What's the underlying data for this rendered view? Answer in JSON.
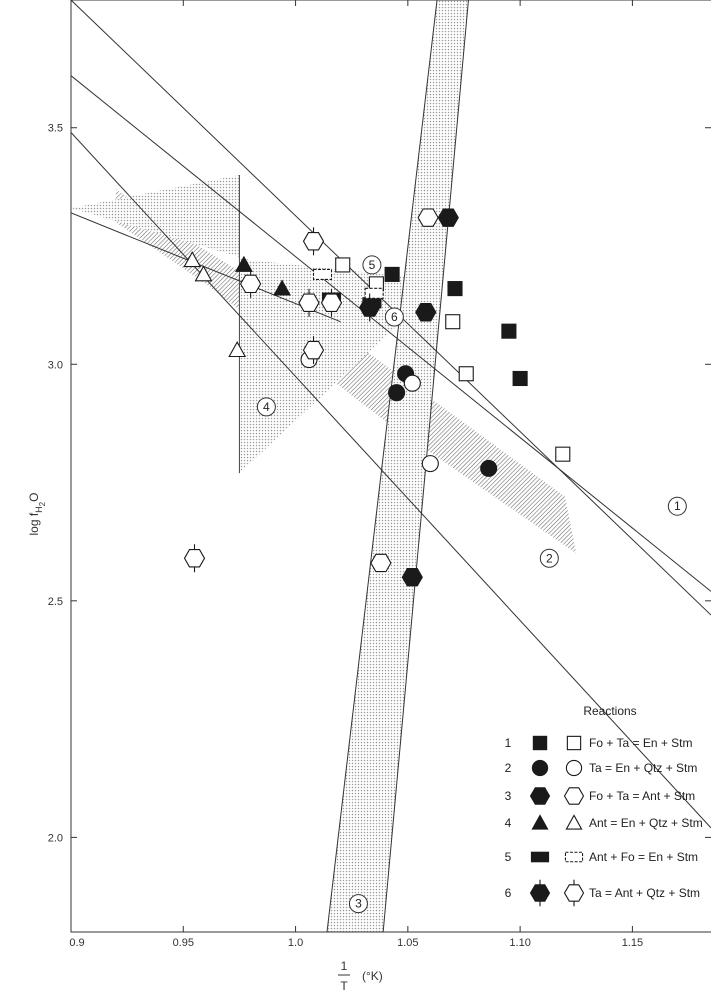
{
  "chart_data": {
    "type": "scatter",
    "xlabel_num": "1",
    "xlabel_den": "T",
    "xlabel_unit": "(°K)",
    "ylabel": "log f",
    "ylabel_sub": "H",
    "ylabel_sub2": "2",
    "ylabel_end": "O",
    "xlim": [
      0.9,
      1.185
    ],
    "ylim": [
      1.8,
      3.77
    ],
    "x_ticks": [
      0.9,
      0.95,
      1.0,
      1.05,
      1.1,
      1.15
    ],
    "x_tick_labels": [
      "0.9",
      "0.95",
      "1.0",
      "1.05",
      "1.10",
      "1.15"
    ],
    "y_ticks": [
      2.0,
      2.5,
      3.0,
      3.5
    ],
    "y_tick_labels": [
      "2.0",
      "2.5",
      "3.0",
      "3.5"
    ],
    "legend_title": "Reactions",
    "legend": [
      {
        "num": "1",
        "text": "Fo + Ta = En + Stm",
        "filled": "square",
        "open": "square"
      },
      {
        "num": "2",
        "text": "Ta = En + Qtz + Stm",
        "filled": "circle",
        "open": "circle"
      },
      {
        "num": "3",
        "text": "Fo + Ta = Ant + Stm",
        "filled": "hexagon",
        "open": "hexagon"
      },
      {
        "num": "4",
        "text": "Ant = En + Qtz + Stm",
        "filled": "triangle",
        "open": "triangle"
      },
      {
        "num": "5",
        "text": "Ant + Fo = En + Stm",
        "filled": "rect",
        "open": "rect"
      },
      {
        "num": "6",
        "text": "Ta = Ant + Qtz + Stm",
        "filled": "hexbar",
        "open": "hexbar"
      }
    ],
    "reaction_lines": [
      {
        "name": "1",
        "x": [
          0.9,
          1.185
        ],
        "y": [
          3.77,
          2.47
        ]
      },
      {
        "name": "2a",
        "x": [
          0.9,
          1.185
        ],
        "y": [
          3.61,
          2.52
        ]
      },
      {
        "name": "2b",
        "x": [
          0.9,
          1.185
        ],
        "y": [
          3.49,
          2.02
        ]
      },
      {
        "name": "3a",
        "x": [
          1.014,
          1.063
        ],
        "y": [
          1.8,
          3.77
        ]
      },
      {
        "name": "3b",
        "x": [
          1.039,
          1.077
        ],
        "y": [
          1.8,
          3.77
        ]
      },
      {
        "name": "4",
        "x": [
          0.9,
          1.02
        ],
        "y": [
          3.32,
          3.09
        ]
      }
    ],
    "shaded_regions": [
      {
        "label": "2",
        "points": [
          [
            0.92,
            3.37
          ],
          [
            0.95,
            3.27
          ],
          [
            1.025,
            3.05
          ],
          [
            1.12,
            2.72
          ],
          [
            1.125,
            2.6
          ],
          [
            1.04,
            2.88
          ],
          [
            0.96,
            3.17
          ],
          [
            0.92,
            3.3
          ]
        ]
      },
      {
        "label": "3",
        "points": [
          [
            1.014,
            1.8
          ],
          [
            1.039,
            1.8
          ],
          [
            1.077,
            3.77
          ],
          [
            1.063,
            3.77
          ]
        ]
      },
      {
        "label": "4",
        "points": [
          [
            0.9,
            3.33
          ],
          [
            0.9,
            3.33
          ],
          [
            0.975,
            3.4
          ],
          [
            0.975,
            2.77
          ],
          [
            1.045,
            3.08
          ],
          [
            1.06,
            3.18
          ],
          [
            0.98,
            3.22
          ],
          [
            0.9,
            3.33
          ]
        ]
      }
    ],
    "callouts": [
      {
        "label": "1",
        "x": 1.17,
        "y": 2.7
      },
      {
        "label": "2",
        "x": 1.113,
        "y": 2.59
      },
      {
        "label": "3",
        "x": 1.028,
        "y": 1.86
      },
      {
        "label": "4",
        "x": 0.987,
        "y": 2.91
      },
      {
        "label": "5",
        "x": 1.034,
        "y": 3.21
      },
      {
        "label": "6",
        "x": 1.044,
        "y": 3.1
      }
    ],
    "series": [
      {
        "name": "1",
        "marker": "square",
        "filled": true,
        "points": [
          [
            1.043,
            3.19
          ],
          [
            1.071,
            3.16
          ],
          [
            1.095,
            3.07
          ],
          [
            1.1,
            2.97
          ]
        ]
      },
      {
        "name": "1",
        "marker": "square",
        "filled": false,
        "points": [
          [
            1.021,
            3.21
          ],
          [
            1.036,
            3.17
          ],
          [
            1.07,
            3.09
          ],
          [
            1.076,
            2.98
          ],
          [
            1.119,
            2.81
          ]
        ]
      },
      {
        "name": "2",
        "marker": "circle",
        "filled": true,
        "points": [
          [
            1.049,
            2.98
          ],
          [
            1.045,
            2.94
          ],
          [
            1.086,
            2.78
          ]
        ]
      },
      {
        "name": "2",
        "marker": "circle",
        "filled": false,
        "points": [
          [
            1.006,
            3.01
          ],
          [
            1.06,
            2.79
          ],
          [
            1.052,
            2.96
          ]
        ]
      },
      {
        "name": "3",
        "marker": "hexagon",
        "filled": true,
        "points": [
          [
            1.068,
            3.31
          ],
          [
            1.058,
            3.11
          ],
          [
            1.052,
            2.55
          ]
        ]
      },
      {
        "name": "3",
        "marker": "hexagon",
        "filled": false,
        "points": [
          [
            1.059,
            3.31
          ],
          [
            1.038,
            2.58
          ]
        ]
      },
      {
        "name": "4",
        "marker": "triangle",
        "filled": true,
        "points": [
          [
            0.977,
            3.21
          ],
          [
            0.994,
            3.16
          ]
        ]
      },
      {
        "name": "4",
        "marker": "triangle",
        "filled": false,
        "points": [
          [
            0.954,
            3.22
          ],
          [
            0.959,
            3.19
          ],
          [
            0.974,
            3.03
          ]
        ]
      },
      {
        "name": "5",
        "marker": "rect",
        "filled": true,
        "points": [
          [
            1.016,
            3.14
          ],
          [
            1.034,
            3.13
          ]
        ]
      },
      {
        "name": "5",
        "marker": "rect",
        "filled": false,
        "points": [
          [
            1.012,
            3.19
          ],
          [
            1.035,
            3.15
          ]
        ]
      },
      {
        "name": "6",
        "marker": "hexbar",
        "filled": true,
        "points": [
          [
            1.033,
            3.12
          ]
        ]
      },
      {
        "name": "6",
        "marker": "hexbar",
        "filled": false,
        "points": [
          [
            1.008,
            3.26
          ],
          [
            0.955,
            2.59
          ],
          [
            1.006,
            3.13
          ],
          [
            1.016,
            3.13
          ],
          [
            1.008,
            3.03
          ],
          [
            0.98,
            3.17
          ]
        ]
      }
    ]
  }
}
